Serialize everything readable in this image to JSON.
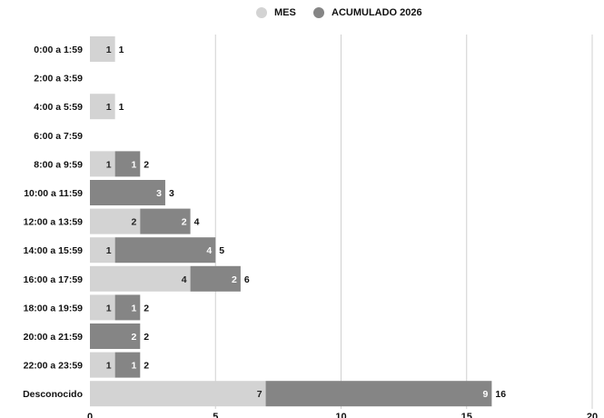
{
  "legend": {
    "mes_label": "MES",
    "acumulado_label": "ACUMULADO 2026"
  },
  "colors": {
    "mes": "#d3d3d3",
    "acumulado": "#858585",
    "grid": "#d0d0d0",
    "text": "#111111"
  },
  "chart_data": {
    "type": "bar",
    "orientation": "horizontal",
    "stacked": true,
    "categories": [
      "0:00 a 1:59",
      "2:00 a 3:59",
      "4:00 a 5:59",
      "6:00 a 7:59",
      "8:00 a 9:59",
      "10:00 a 11:59",
      "12:00 a 13:59",
      "14:00 a 15:59",
      "16:00 a 17:59",
      "18:00 a 19:59",
      "20:00 a 21:59",
      "22:00 a 23:59",
      "Desconocido"
    ],
    "series": [
      {
        "name": "MES",
        "values": [
          1,
          0,
          1,
          0,
          1,
          0,
          2,
          1,
          4,
          1,
          0,
          1,
          7
        ]
      },
      {
        "name": "ACUMULADO 2026",
        "values": [
          0,
          0,
          0,
          0,
          1,
          3,
          2,
          4,
          2,
          1,
          2,
          1,
          9
        ]
      }
    ],
    "totals": [
      1,
      null,
      1,
      null,
      2,
      3,
      4,
      5,
      6,
      2,
      2,
      2,
      16
    ],
    "xlim": [
      0,
      20
    ],
    "xticks": [
      "0",
      "5",
      "10",
      "15",
      "20"
    ],
    "grid": true,
    "legend_position": "top-center"
  }
}
